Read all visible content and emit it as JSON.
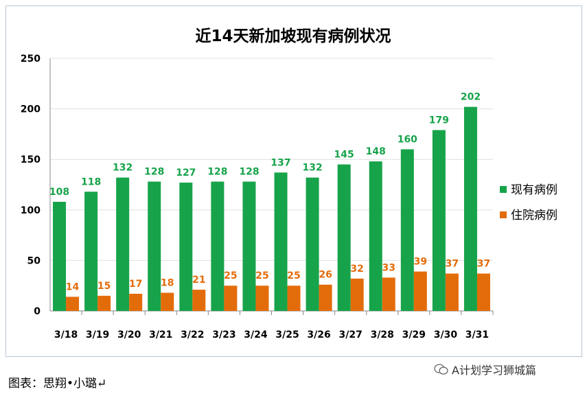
{
  "chart_data": {
    "type": "bar",
    "title": "近14天新加坡现有病例状况",
    "categories": [
      "3/18",
      "3/19",
      "3/20",
      "3/21",
      "3/22",
      "3/23",
      "3/24",
      "3/25",
      "3/26",
      "3/27",
      "3/28",
      "3/29",
      "3/30",
      "3/31"
    ],
    "series": [
      {
        "name": "现有病例",
        "color": "#17a34a",
        "values": [
          108,
          118,
          132,
          128,
          127,
          128,
          128,
          137,
          132,
          145,
          148,
          160,
          179,
          202
        ]
      },
      {
        "name": "住院病例",
        "color": "#e36c0a",
        "values": [
          14,
          15,
          17,
          18,
          21,
          25,
          25,
          25,
          26,
          32,
          33,
          39,
          37,
          37
        ]
      }
    ],
    "ylim": [
      0,
      250
    ],
    "yticks": [
      0,
      50,
      100,
      150,
      200,
      250
    ],
    "grid": true,
    "legend": "right"
  },
  "caption": "图表：思翔•小璐↵",
  "watermark": "A计划学习狮城篇"
}
